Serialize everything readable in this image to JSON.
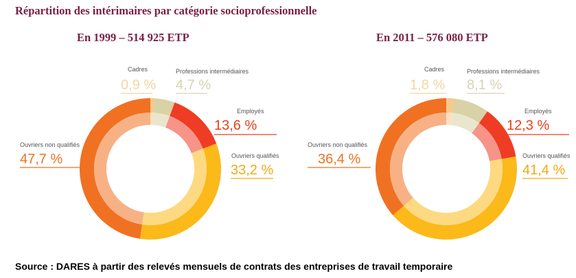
{
  "title": "Répartition des intérimaires par catégorie socioprofessionnelle",
  "source": "Source : DARES à partir des relevés mensuels de contrats des entreprises de travail temporaire",
  "chart_data": [
    {
      "type": "pie",
      "title": "En 1999 – 514 925 ETP",
      "categories": [
        "Cadres",
        "Professions intermédiaires",
        "Employés",
        "Ouvriers qualifiés",
        "Ouvriers non qualifiés"
      ],
      "values": [
        0.9,
        4.7,
        13.6,
        33.2,
        47.7
      ],
      "value_labels": [
        "0,9 %",
        "4,7 %",
        "13,6 %",
        "33,2 %",
        "47,7 %"
      ],
      "colors": [
        "#f7c98c",
        "#d8d2a6",
        "#ef3c24",
        "#fbb91a",
        "#f07122"
      ],
      "label_colors": [
        "#f1d7a4",
        "#d6d3b3",
        "#e8401c",
        "#f4a914",
        "#f07122"
      ]
    },
    {
      "type": "pie",
      "title": "En 2011 – 576 080 ETP",
      "categories": [
        "Cadres",
        "Professions intermédiaires",
        "Employés",
        "Ouvriers qualifiés",
        "Ouvriers non qualifiés"
      ],
      "values": [
        1.8,
        8.1,
        12.3,
        41.4,
        36.4
      ],
      "value_labels": [
        "1,8 %",
        "8,1 %",
        "12,3 %",
        "41,4 %",
        "36,4 %"
      ],
      "colors": [
        "#f7c98c",
        "#d8d2a6",
        "#ef3c24",
        "#fbb91a",
        "#f07122"
      ],
      "label_colors": [
        "#f1d7a4",
        "#d6d3b3",
        "#e8401c",
        "#f4a914",
        "#f07122"
      ]
    }
  ]
}
